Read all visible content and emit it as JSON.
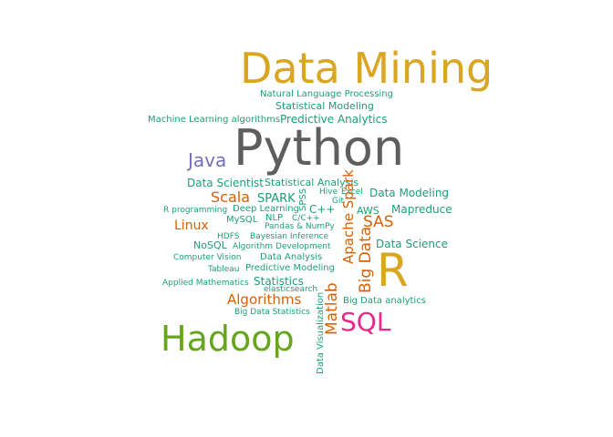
{
  "palette": {
    "gold": "#DAA520",
    "gray": "#5E5E5E",
    "purple": "#7570B3",
    "orange": "#D95F02",
    "pink": "#E7298A",
    "green": "#66A61E",
    "teal": "#1B9E77"
  },
  "words": [
    {
      "text": "Data Mining",
      "color": "gold"
    },
    {
      "text": "Natural Language Processing",
      "color": "teal"
    },
    {
      "text": "Statistical Modeling",
      "color": "teal"
    },
    {
      "text": "Machine Learning algorithms",
      "color": "teal"
    },
    {
      "text": "Predictive Analytics",
      "color": "teal"
    },
    {
      "text": "Python",
      "color": "gray"
    },
    {
      "text": "Java",
      "color": "purple"
    },
    {
      "text": "Data Scientist",
      "color": "teal"
    },
    {
      "text": "Statistical Analysis",
      "color": "teal"
    },
    {
      "text": "Scala",
      "color": "orange"
    },
    {
      "text": "SPARK",
      "color": "teal"
    },
    {
      "text": "SPSS",
      "color": "teal"
    },
    {
      "text": "Hive",
      "color": "teal"
    },
    {
      "text": "Excel",
      "color": "teal"
    },
    {
      "text": "Git",
      "color": "teal"
    },
    {
      "text": "Data Modeling",
      "color": "teal"
    },
    {
      "text": "R programming",
      "color": "teal"
    },
    {
      "text": "Deep Learning",
      "color": "teal"
    },
    {
      "text": "C++",
      "color": "teal"
    },
    {
      "text": "AWS",
      "color": "teal"
    },
    {
      "text": "Mapreduce",
      "color": "teal"
    },
    {
      "text": "Linux",
      "color": "orange"
    },
    {
      "text": "MySQL",
      "color": "teal"
    },
    {
      "text": "NLP",
      "color": "teal"
    },
    {
      "text": "C/C++",
      "color": "teal"
    },
    {
      "text": "Apache Spark",
      "color": "orange"
    },
    {
      "text": "SAS",
      "color": "orange"
    },
    {
      "text": "Pandas & NumPy",
      "color": "teal"
    },
    {
      "text": "HDFS",
      "color": "teal"
    },
    {
      "text": "Bayesian Inference",
      "color": "teal"
    },
    {
      "text": "Big Data",
      "color": "orange"
    },
    {
      "text": "Data Science",
      "color": "teal"
    },
    {
      "text": "NoSQL",
      "color": "teal"
    },
    {
      "text": "Algorithm Development",
      "color": "teal"
    },
    {
      "text": "R",
      "color": "gold"
    },
    {
      "text": "Computer Vision",
      "color": "teal"
    },
    {
      "text": "Data Analysis",
      "color": "teal"
    },
    {
      "text": "Tableau",
      "color": "teal"
    },
    {
      "text": "Predictive Modeling",
      "color": "teal"
    },
    {
      "text": "Applied Mathematics",
      "color": "teal"
    },
    {
      "text": "Statistics",
      "color": "teal"
    },
    {
      "text": "elasticsearch",
      "color": "teal"
    },
    {
      "text": "Matlab",
      "color": "orange"
    },
    {
      "text": "Algorithms",
      "color": "orange"
    },
    {
      "text": "Big Data analytics",
      "color": "teal"
    },
    {
      "text": "Big Data Statistics",
      "color": "teal"
    },
    {
      "text": "SQL",
      "color": "pink"
    },
    {
      "text": "Data Visualization",
      "color": "teal"
    },
    {
      "text": "Hadoop",
      "color": "green"
    }
  ]
}
